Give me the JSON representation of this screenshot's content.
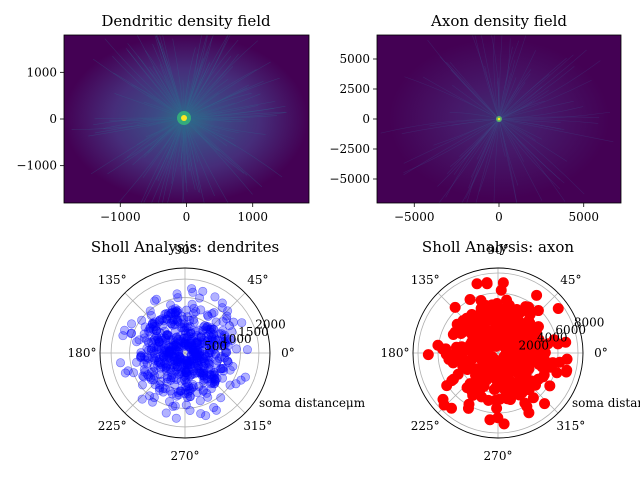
{
  "colors": {
    "viridis_low": "#440154",
    "viridis_mid": "#21918c",
    "viridis_high": "#fde725",
    "dendrite_points": "#0000ff",
    "axon_points": "#ff0000",
    "grid": "#b0b0b0"
  },
  "chart_data": [
    {
      "type": "heatmap",
      "title": "Dendritic density field",
      "xlim": [
        -1850,
        1850
      ],
      "ylim": [
        -1800,
        1800
      ],
      "xticks": [
        -1000,
        0,
        1000
      ],
      "xtick_labels": [
        "−1000",
        "0",
        "1000"
      ],
      "yticks": [
        -1000,
        0,
        1000
      ],
      "ytick_labels": [
        "−1000",
        "0",
        "1000"
      ],
      "colormap": "viridis",
      "peak": [
        0,
        0
      ],
      "grid": false
    },
    {
      "type": "heatmap",
      "title": "Axon density field",
      "xlim": [
        -7200,
        7200
      ],
      "ylim": [
        -7000,
        7000
      ],
      "xticks": [
        -5000,
        0,
        5000
      ],
      "xtick_labels": [
        "−5000",
        "0",
        "5000"
      ],
      "yticks": [
        -5000,
        -2500,
        0,
        2500,
        5000
      ],
      "ytick_labels": [
        "−5000",
        "−2500",
        "0",
        "2500",
        "5000"
      ],
      "colormap": "viridis",
      "peak": [
        0,
        0
      ],
      "grid": false
    },
    {
      "type": "scatter",
      "projection": "polar",
      "title": "Sholl Analysis: dendrites",
      "rmax": 2300,
      "rticks": [
        500,
        1000,
        1500,
        2000
      ],
      "rtick_labels": [
        "500",
        "1000",
        "1500",
        "2000"
      ],
      "angle_ticks_deg": [
        0,
        45,
        90,
        135,
        180,
        225,
        270,
        315
      ],
      "angle_tick_labels": [
        "0°",
        "45°",
        "90°",
        "135°",
        "180°",
        "225°",
        "270°",
        "315°"
      ],
      "radial_label": "soma distanceμm",
      "marker_alpha": 0.3,
      "typical_radius": 1100,
      "max_radius": 1800,
      "n_points": 600,
      "grid": true
    },
    {
      "type": "scatter",
      "projection": "polar",
      "title": "Sholl Analysis: axon",
      "rmax": 8500,
      "rticks": [
        2000,
        4000,
        6000,
        8000
      ],
      "rtick_labels": [
        "2000",
        "4000",
        "6000",
        "8000"
      ],
      "angle_ticks_deg": [
        0,
        45,
        90,
        135,
        180,
        225,
        270,
        315
      ],
      "angle_tick_labels": [
        "0°",
        "45°",
        "90°",
        "135°",
        "180°",
        "225°",
        "270°",
        "315°"
      ],
      "radial_label": "soma distan",
      "marker_alpha": 1.0,
      "typical_radius": 4500,
      "max_radius": 7500,
      "n_points": 400,
      "grid": true
    }
  ]
}
